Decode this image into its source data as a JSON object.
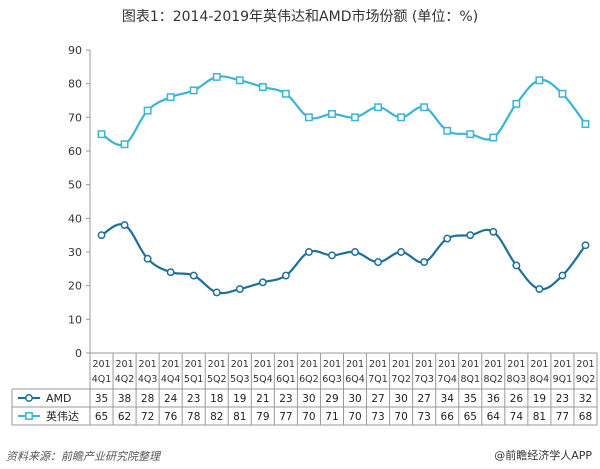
{
  "title": "图表1：2014-2019年英伟达和AMD市场份额 (单位：%)",
  "footer": {
    "source": "资料来源：前瞻产业研究院整理",
    "brand": "@前瞻经济学人APP"
  },
  "colors": {
    "amd": "#1e6f9a",
    "nvidia": "#3bb4d6",
    "grid": "#d9d9d9",
    "axis": "#999999"
  },
  "chart_data": {
    "type": "line",
    "title": "图表1：2014-2019年英伟达和AMD市场份额 (单位：%)",
    "xlabel": "",
    "ylabel": "",
    "ylim": [
      0,
      90
    ],
    "yticks": [
      0,
      10,
      20,
      30,
      40,
      50,
      60,
      70,
      80,
      90
    ],
    "grid": false,
    "legend": "table-bottom",
    "categories": [
      [
        "201",
        "4Q1"
      ],
      [
        "201",
        "4Q2"
      ],
      [
        "201",
        "4Q3"
      ],
      [
        "201",
        "4Q4"
      ],
      [
        "201",
        "5Q1"
      ],
      [
        "201",
        "5Q2"
      ],
      [
        "201",
        "5Q3"
      ],
      [
        "201",
        "5Q4"
      ],
      [
        "201",
        "6Q1"
      ],
      [
        "201",
        "6Q2"
      ],
      [
        "201",
        "6Q3"
      ],
      [
        "201",
        "6Q4"
      ],
      [
        "201",
        "7Q1"
      ],
      [
        "201",
        "7Q2"
      ],
      [
        "201",
        "7Q3"
      ],
      [
        "201",
        "7Q4"
      ],
      [
        "201",
        "8Q1"
      ],
      [
        "201",
        "8Q2"
      ],
      [
        "201",
        "8Q3"
      ],
      [
        "201",
        "8Q4"
      ],
      [
        "201",
        "9Q1"
      ],
      [
        "201",
        "9Q2"
      ]
    ],
    "series": [
      {
        "name": "AMD",
        "marker": "circle",
        "values": [
          35,
          38,
          28,
          24,
          23,
          18,
          19,
          21,
          23,
          30,
          29,
          30,
          27,
          30,
          27,
          34,
          35,
          36,
          26,
          19,
          23,
          32
        ]
      },
      {
        "name": "英伟达",
        "marker": "square",
        "values": [
          65,
          62,
          72,
          76,
          78,
          82,
          81,
          79,
          77,
          70,
          71,
          70,
          73,
          70,
          73,
          66,
          65,
          64,
          74,
          81,
          77,
          68
        ]
      }
    ]
  }
}
